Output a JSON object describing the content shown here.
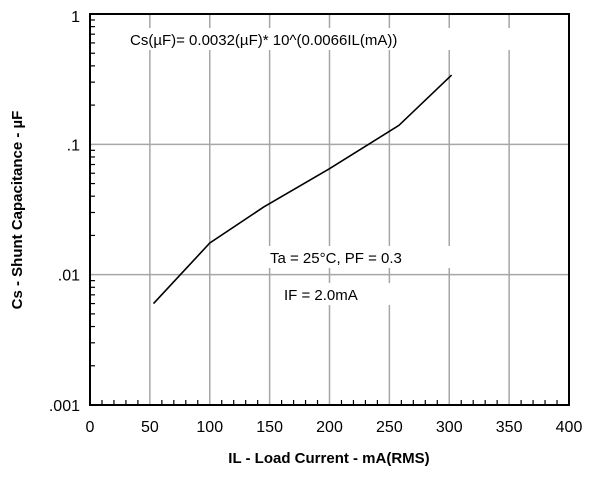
{
  "chart_data": {
    "type": "line",
    "title": "",
    "xlabel": "IL - Load Current -  mA(RMS)",
    "ylabel": "Cs - Shunt Capacitance  - µF",
    "xlim": [
      0,
      400
    ],
    "ylim": [
      0.001,
      1
    ],
    "yscale": "log",
    "grid": true,
    "x_ticks": [
      "0",
      "50",
      "100",
      "150",
      "200",
      "250",
      "300",
      "350",
      "400"
    ],
    "y_ticks": [
      {
        "value": 1,
        "label": "1"
      },
      {
        "value": 0.1,
        "label": ".1"
      },
      {
        "value": 0.01,
        "label": ".01"
      },
      {
        "value": 0.001,
        "label": ".001"
      }
    ],
    "series": [
      {
        "x": [
          53,
          100,
          145,
          200,
          258,
          302
        ],
        "y": [
          0.006,
          0.0175,
          0.033,
          0.065,
          0.14,
          0.34
        ]
      }
    ],
    "annotations": {
      "equation": "Cs(µF)= 0.0032(µF)* 10^(0.0066IL(mA))",
      "conditions": "Ta = 25°C,  PF = 0.3",
      "if_value": "IF  =  2.0mA"
    }
  }
}
